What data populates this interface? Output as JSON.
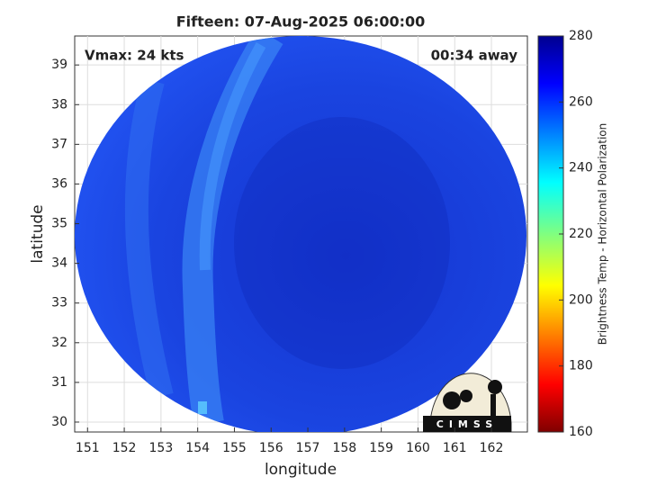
{
  "map": {
    "title": "Fifteen: 07-Aug-2025 06:00:00",
    "annotations": {
      "left": "Vmax: 24 kts",
      "right": "00:34 away"
    },
    "xlabel": "longitude",
    "ylabel": "latitude",
    "xlim": [
      150.65,
      162.98
    ],
    "ylim": [
      29.75,
      39.73
    ],
    "xticks": [
      151,
      152,
      153,
      154,
      155,
      156,
      157,
      158,
      159,
      160,
      161,
      162
    ],
    "yticks": [
      30,
      31,
      32,
      33,
      34,
      35,
      36,
      37,
      38,
      39
    ],
    "grid": true,
    "colorbar": {
      "label": "Brightness Temp - Horizontal Polarization",
      "lim": [
        160,
        280
      ],
      "ticks": [
        160,
        180,
        200,
        220,
        240,
        260,
        280
      ]
    },
    "logo": "CIMSS"
  }
}
